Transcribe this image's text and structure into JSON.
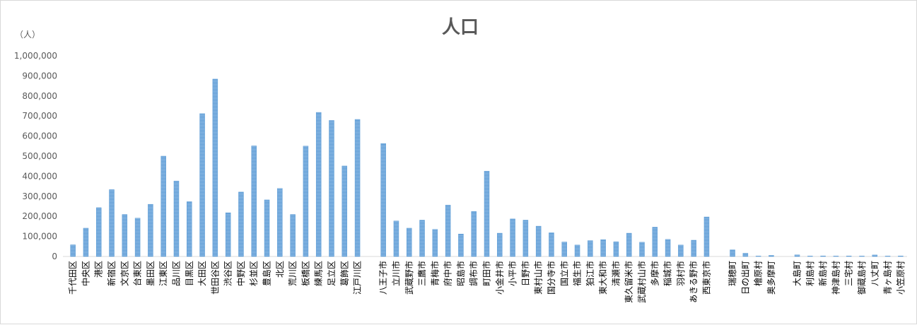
{
  "chart_data": {
    "type": "bar",
    "title": "人口",
    "ylabel": "（人）",
    "xlabel": "",
    "ylim": [
      0,
      1000000
    ],
    "yticks": [
      "0",
      "100,000",
      "200,000",
      "300,000",
      "400,000",
      "500,000",
      "600,000",
      "700,000",
      "800,000",
      "900,000",
      "1,000,000"
    ],
    "grid": false,
    "color": "#5b9bd5",
    "categories": [
      "千代田区",
      "中央区",
      "港区",
      "新宿区",
      "文京区",
      "台東区",
      "墨田区",
      "江東区",
      "品川区",
      "目黒区",
      "大田区",
      "世田谷区",
      "渋谷区",
      "中野区",
      "杉並区",
      "豊島区",
      "北区",
      "荒川区",
      "板橋区",
      "練馬区",
      "足立区",
      "葛飾区",
      "江戸川区",
      "",
      "八王子市",
      "立川市",
      "武蔵野市",
      "三鷹市",
      "青梅市",
      "府中市",
      "昭島市",
      "調布市",
      "町田市",
      "小金井市",
      "小平市",
      "日野市",
      "東村山市",
      "国分寺市",
      "国立市",
      "福生市",
      "狛江市",
      "東大和市",
      "清瀬市",
      "東久留米市",
      "武蔵村山市",
      "多摩市",
      "稲城市",
      "羽村市",
      "あきる野市",
      "西東京市",
      "",
      "瑞穂町",
      "日の出町",
      "檜原村",
      "奥多摩町",
      "",
      "大島町",
      "利島村",
      "新島村",
      "神津島村",
      "三宅村",
      "御蔵島村",
      "八丈町",
      "青ヶ島村",
      "小笠原村"
    ],
    "values": [
      58000,
      141000,
      243000,
      333000,
      209000,
      191000,
      260000,
      500000,
      376000,
      273000,
      712000,
      884000,
      218000,
      321000,
      551000,
      282000,
      339000,
      209000,
      550000,
      718000,
      678000,
      451000,
      683000,
      null,
      563000,
      177000,
      141000,
      181000,
      135000,
      256000,
      112000,
      224000,
      425000,
      116000,
      187000,
      181000,
      151000,
      118000,
      72000,
      57000,
      79000,
      84000,
      73000,
      116000,
      71000,
      146000,
      85000,
      57000,
      81000,
      197000,
      null,
      33000,
      16000,
      2200,
      5200,
      null,
      8000,
      300,
      2700,
      1900,
      2400,
      300,
      7500,
      170,
      2600
    ]
  }
}
